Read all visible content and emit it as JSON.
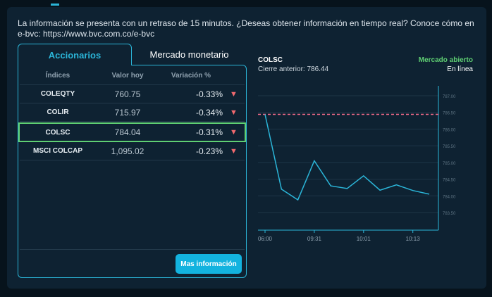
{
  "notice": "La información se presenta con un retraso de 15 minutos. ¿Deseas obtener información en tiempo real? Conoce cómo en e-bvc: https://www.bvc.com.co/e-bvc",
  "tabs": [
    {
      "label": "Accionarios",
      "active": true
    },
    {
      "label": "Mercado monetario",
      "active": false
    }
  ],
  "table": {
    "headers": [
      "Índices",
      "Valor hoy",
      "Variación %"
    ],
    "rows": [
      {
        "name": "COLEQTY",
        "value": "760.75",
        "change": "-0.33%",
        "trend": "▼"
      },
      {
        "name": "COLIR",
        "value": "715.97",
        "change": "-0.34%",
        "trend": "▼"
      },
      {
        "name": "COLSC",
        "value": "784.04",
        "change": "-0.31%",
        "trend": "▼",
        "selected": true
      },
      {
        "name": "MSCI COLCAP",
        "value": "1,095.02",
        "change": "-0.23%",
        "trend": "▼"
      }
    ]
  },
  "more_button": "Mas información",
  "chart_header": {
    "title": "COLSC",
    "prev_close": "Cierre anterior: 786.44",
    "market_status": "Mercado abierto",
    "online": "En línea"
  },
  "colors": {
    "accent": "#2bb5d8",
    "up": "#5fcf73",
    "down": "#f36a6f",
    "reference": "#f36a8a"
  },
  "chart_data": {
    "type": "line",
    "title": "COLSC",
    "x_ticks": [
      "06:00",
      "09:31",
      "10:01",
      "10:13"
    ],
    "y_ticks": [
      783.5,
      784.0,
      784.5,
      785.0,
      785.5,
      786.0,
      786.5,
      787.0
    ],
    "ylim": [
      783.2,
      787.4
    ],
    "reference": 786.44,
    "values": [
      786.44,
      784.2,
      783.88,
      785.05,
      784.3,
      784.22,
      784.6,
      784.17,
      784.33,
      784.16,
      784.05
    ]
  }
}
